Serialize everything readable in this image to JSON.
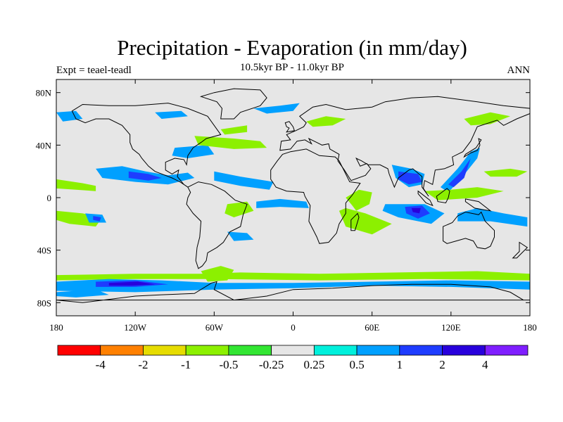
{
  "title": "Precipitation - Evaporation (in mm/day)",
  "subtitle": "10.5kyr BP - 11.0kyr BP",
  "left_label": "Expt = teael-teadl",
  "right_label": "ANN",
  "map": {
    "projection": "cylindrical-equidistant",
    "lon_range": [
      -180,
      180
    ],
    "lat_range": [
      -90,
      90
    ],
    "ocean_color": "#e6e6e6",
    "coastline_color": "#000000",
    "x_ticks": [
      {
        "value": -180,
        "label": "180"
      },
      {
        "value": -120,
        "label": "120W"
      },
      {
        "value": -60,
        "label": "60W"
      },
      {
        "value": 0,
        "label": "0"
      },
      {
        "value": 60,
        "label": "60E"
      },
      {
        "value": 120,
        "label": "120E"
      },
      {
        "value": 180,
        "label": "180"
      }
    ],
    "y_ticks": [
      {
        "value": 80,
        "label": "80N"
      },
      {
        "value": 40,
        "label": "40N"
      },
      {
        "value": 0,
        "label": "0"
      },
      {
        "value": -40,
        "label": "40S"
      },
      {
        "value": -80,
        "label": "80S"
      }
    ]
  },
  "colorbar": {
    "colors": [
      "#ff0000",
      "#ff8000",
      "#e6dc00",
      "#8cf000",
      "#32e632",
      "#e6e6e6",
      "#00f0dc",
      "#00a0ff",
      "#1e3cff",
      "#2800dc",
      "#7f1eff"
    ],
    "labels": [
      "-4",
      "-2",
      "-1",
      "-0.5",
      "-0.25",
      "0.25",
      "0.5",
      "1",
      "2",
      "4"
    ]
  },
  "chart_data": {
    "type": "heatmap",
    "title": "Precipitation - Evaporation (in mm/day)",
    "subtitle": "10.5kyr BP - 11.0kyr BP",
    "levels": [
      -4,
      -2,
      -1,
      -0.5,
      -0.25,
      0.25,
      0.5,
      1,
      2,
      4
    ],
    "regions": [
      {
        "level": 0.5,
        "pts": [
          [
            -150,
            22
          ],
          [
            -130,
            24
          ],
          [
            -112,
            20
          ],
          [
            -95,
            17
          ],
          [
            -80,
            19
          ],
          [
            -75,
            15
          ],
          [
            -95,
            10
          ],
          [
            -120,
            12
          ],
          [
            -145,
            15
          ]
        ]
      },
      {
        "level": 1,
        "pts": [
          [
            -125,
            20
          ],
          [
            -110,
            18
          ],
          [
            -100,
            15
          ],
          [
            -110,
            13
          ],
          [
            -125,
            15
          ]
        ]
      },
      {
        "level": 0.5,
        "pts": [
          [
            -60,
            20
          ],
          [
            -40,
            16
          ],
          [
            -15,
            12
          ],
          [
            -18,
            6
          ],
          [
            -40,
            9
          ],
          [
            -60,
            13
          ]
        ]
      },
      {
        "level": 0.5,
        "pts": [
          [
            -90,
            38
          ],
          [
            -65,
            40
          ],
          [
            -60,
            33
          ],
          [
            -80,
            30
          ],
          [
            -92,
            32
          ]
        ]
      },
      {
        "level": -0.5,
        "pts": [
          [
            -75,
            47
          ],
          [
            -45,
            45
          ],
          [
            -25,
            43
          ],
          [
            -20,
            38
          ],
          [
            -45,
            37
          ],
          [
            -72,
            40
          ]
        ]
      },
      {
        "level": -0.5,
        "pts": [
          [
            -55,
            52
          ],
          [
            -35,
            55
          ],
          [
            -35,
            50
          ],
          [
            -52,
            48
          ]
        ]
      },
      {
        "level": -0.5,
        "pts": [
          [
            -180,
            14
          ],
          [
            -160,
            11
          ],
          [
            -150,
            9
          ],
          [
            -150,
            5
          ],
          [
            -165,
            6
          ],
          [
            -180,
            7
          ]
        ]
      },
      {
        "level": -0.5,
        "pts": [
          [
            -180,
            -10
          ],
          [
            -160,
            -12
          ],
          [
            -145,
            -15
          ],
          [
            -150,
            -22
          ],
          [
            -170,
            -20
          ],
          [
            -180,
            -17
          ]
        ]
      },
      {
        "level": 0.5,
        "pts": [
          [
            -158,
            -12
          ],
          [
            -145,
            -13
          ],
          [
            -142,
            -19
          ],
          [
            -155,
            -19
          ]
        ]
      },
      {
        "level": 1,
        "pts": [
          [
            -152,
            -14
          ],
          [
            -146,
            -15
          ],
          [
            -147,
            -18
          ],
          [
            -152,
            -17
          ]
        ]
      },
      {
        "level": -0.5,
        "pts": [
          [
            -50,
            -5
          ],
          [
            -35,
            -3
          ],
          [
            -30,
            -10
          ],
          [
            -45,
            -15
          ],
          [
            -52,
            -12
          ]
        ]
      },
      {
        "level": 0.5,
        "pts": [
          [
            -28,
            -3
          ],
          [
            -10,
            -1
          ],
          [
            10,
            -3
          ],
          [
            12,
            -8
          ],
          [
            -10,
            -7
          ],
          [
            -28,
            -8
          ]
        ]
      },
      {
        "level": 0.5,
        "pts": [
          [
            -50,
            -26
          ],
          [
            -35,
            -27
          ],
          [
            -30,
            -32
          ],
          [
            -45,
            -33
          ]
        ]
      },
      {
        "level": -0.5,
        "pts": [
          [
            40,
            0
          ],
          [
            50,
            6
          ],
          [
            60,
            4
          ],
          [
            58,
            -5
          ],
          [
            48,
            -10
          ],
          [
            45,
            -6
          ]
        ]
      },
      {
        "level": -0.5,
        "pts": [
          [
            35,
            -10
          ],
          [
            40,
            -8
          ],
          [
            55,
            -12
          ],
          [
            75,
            -20
          ],
          [
            60,
            -28
          ],
          [
            40,
            -22
          ]
        ]
      },
      {
        "level": 0.5,
        "pts": [
          [
            70,
            -5
          ],
          [
            100,
            -5
          ],
          [
            115,
            -12
          ],
          [
            105,
            -20
          ],
          [
            80,
            -15
          ],
          [
            68,
            -10
          ]
        ]
      },
      {
        "level": 1,
        "pts": [
          [
            85,
            -7
          ],
          [
            98,
            -6
          ],
          [
            104,
            -12
          ],
          [
            95,
            -16
          ],
          [
            86,
            -12
          ]
        ]
      },
      {
        "level": 2,
        "pts": [
          [
            90,
            -8
          ],
          [
            97,
            -8
          ],
          [
            96,
            -12
          ],
          [
            91,
            -11
          ]
        ]
      },
      {
        "level": 0.5,
        "pts": [
          [
            75,
            25
          ],
          [
            90,
            22
          ],
          [
            100,
            18
          ],
          [
            98,
            10
          ],
          [
            88,
            8
          ],
          [
            78,
            15
          ]
        ]
      },
      {
        "level": 1,
        "pts": [
          [
            80,
            20
          ],
          [
            95,
            18
          ],
          [
            98,
            12
          ],
          [
            88,
            10
          ],
          [
            80,
            14
          ]
        ]
      },
      {
        "level": 0.5,
        "pts": [
          [
            112,
            8
          ],
          [
            125,
            22
          ],
          [
            135,
            35
          ],
          [
            142,
            38
          ],
          [
            140,
            30
          ],
          [
            128,
            15
          ],
          [
            118,
            4
          ]
        ]
      },
      {
        "level": 1,
        "pts": [
          [
            118,
            10
          ],
          [
            128,
            20
          ],
          [
            135,
            30
          ],
          [
            130,
            15
          ],
          [
            122,
            8
          ]
        ]
      },
      {
        "level": -0.5,
        "pts": [
          [
            100,
            5
          ],
          [
            120,
            6
          ],
          [
            140,
            8
          ],
          [
            160,
            5
          ],
          [
            140,
            0
          ],
          [
            110,
            -2
          ]
        ]
      },
      {
        "level": 0.5,
        "pts": [
          [
            125,
            -12
          ],
          [
            140,
            -8
          ],
          [
            160,
            -12
          ],
          [
            178,
            -15
          ],
          [
            178,
            -22
          ],
          [
            150,
            -18
          ],
          [
            125,
            -18
          ]
        ]
      },
      {
        "level": -0.5,
        "pts": [
          [
            145,
            20
          ],
          [
            165,
            22
          ],
          [
            178,
            20
          ],
          [
            170,
            16
          ],
          [
            150,
            16
          ]
        ]
      },
      {
        "level": -0.5,
        "pts": [
          [
            -180,
            -59
          ],
          [
            -120,
            -58
          ],
          [
            -70,
            -58
          ],
          [
            -40,
            -57
          ],
          [
            20,
            -58
          ],
          [
            80,
            -57
          ],
          [
            140,
            -56
          ],
          [
            180,
            -58
          ],
          [
            180,
            -63
          ],
          [
            100,
            -62
          ],
          [
            20,
            -63
          ],
          [
            -60,
            -62
          ],
          [
            -120,
            -62
          ],
          [
            -180,
            -63
          ]
        ]
      },
      {
        "level": 0.5,
        "pts": [
          [
            -180,
            -64
          ],
          [
            -140,
            -62
          ],
          [
            -100,
            -63
          ],
          [
            -60,
            -65
          ],
          [
            0,
            -65
          ],
          [
            60,
            -64
          ],
          [
            120,
            -63
          ],
          [
            180,
            -64
          ],
          [
            180,
            -70
          ],
          [
            120,
            -68
          ],
          [
            60,
            -67
          ],
          [
            0,
            -69
          ],
          [
            -60,
            -70
          ],
          [
            -120,
            -72
          ],
          [
            -180,
            -71
          ]
        ]
      },
      {
        "level": 1,
        "pts": [
          [
            -150,
            -64
          ],
          [
            -120,
            -63
          ],
          [
            -95,
            -66
          ],
          [
            -120,
            -68
          ],
          [
            -150,
            -68
          ]
        ]
      },
      {
        "level": 2,
        "pts": [
          [
            -140,
            -65
          ],
          [
            -118,
            -64
          ],
          [
            -105,
            -66
          ],
          [
            -122,
            -67
          ],
          [
            -140,
            -67
          ]
        ]
      },
      {
        "level": 0.5,
        "pts": [
          [
            -180,
            -72
          ],
          [
            -150,
            -70
          ],
          [
            -140,
            -74
          ],
          [
            -165,
            -76
          ],
          [
            -180,
            -75
          ]
        ]
      },
      {
        "level": -0.5,
        "pts": [
          [
            -70,
            -56
          ],
          [
            -55,
            -52
          ],
          [
            -45,
            -55
          ],
          [
            -50,
            -63
          ],
          [
            -65,
            -64
          ]
        ]
      },
      {
        "level": 0.5,
        "pts": [
          [
            -30,
            68
          ],
          [
            -10,
            70
          ],
          [
            5,
            72
          ],
          [
            0,
            66
          ],
          [
            -20,
            64
          ]
        ]
      },
      {
        "level": 0.5,
        "pts": [
          [
            -180,
            65
          ],
          [
            -165,
            66
          ],
          [
            -160,
            60
          ],
          [
            -175,
            58
          ]
        ]
      },
      {
        "level": -0.5,
        "pts": [
          [
            10,
            58
          ],
          [
            25,
            62
          ],
          [
            40,
            60
          ],
          [
            30,
            55
          ],
          [
            15,
            54
          ]
        ]
      },
      {
        "level": -0.5,
        "pts": [
          [
            130,
            60
          ],
          [
            150,
            65
          ],
          [
            165,
            62
          ],
          [
            150,
            56
          ],
          [
            135,
            55
          ]
        ]
      },
      {
        "level": 0.5,
        "pts": [
          [
            -105,
            65
          ],
          [
            -85,
            66
          ],
          [
            -80,
            62
          ],
          [
            -100,
            60
          ]
        ]
      }
    ]
  }
}
